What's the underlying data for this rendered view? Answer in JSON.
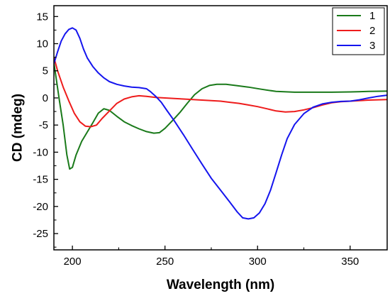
{
  "chart_data": {
    "type": "line",
    "title": "",
    "xlabel": "Wavelength (nm)",
    "ylabel": "CD (mdeg)",
    "xlim": [
      190,
      370
    ],
    "ylim": [
      -28,
      17
    ],
    "x_ticks": [
      200,
      250,
      300,
      350
    ],
    "y_ticks": [
      15,
      10,
      5,
      0,
      -5,
      -10,
      -15,
      -20,
      -25
    ],
    "grid": false,
    "legend_position": "top-right",
    "series": [
      {
        "name": "1",
        "color": "#1a7a1a",
        "points": [
          [
            190,
            6.5
          ],
          [
            191.5,
            3
          ],
          [
            193,
            -0.5
          ],
          [
            195,
            -5
          ],
          [
            197,
            -10.5
          ],
          [
            198.5,
            -13.1
          ],
          [
            200,
            -12.8
          ],
          [
            202,
            -10.5
          ],
          [
            205,
            -8
          ],
          [
            208,
            -6.3
          ],
          [
            211,
            -4.6
          ],
          [
            214,
            -2.8
          ],
          [
            217,
            -2.0
          ],
          [
            220,
            -2.3
          ],
          [
            224,
            -3.4
          ],
          [
            228,
            -4.4
          ],
          [
            232,
            -5.1
          ],
          [
            236,
            -5.7
          ],
          [
            240,
            -6.2
          ],
          [
            244,
            -6.5
          ],
          [
            247,
            -6.4
          ],
          [
            250,
            -5.6
          ],
          [
            254,
            -4.2
          ],
          [
            258,
            -2.7
          ],
          [
            262,
            -1.0
          ],
          [
            266,
            0.6
          ],
          [
            270,
            1.7
          ],
          [
            274,
            2.3
          ],
          [
            278,
            2.5
          ],
          [
            283,
            2.5
          ],
          [
            288,
            2.3
          ],
          [
            295,
            2.0
          ],
          [
            302,
            1.6
          ],
          [
            310,
            1.2
          ],
          [
            320,
            1.05
          ],
          [
            330,
            1.05
          ],
          [
            340,
            1.05
          ],
          [
            350,
            1.1
          ],
          [
            360,
            1.2
          ],
          [
            370,
            1.25
          ]
        ]
      },
      {
        "name": "2",
        "color": "#ee1c1c",
        "points": [
          [
            190,
            7.5
          ],
          [
            192,
            5
          ],
          [
            195,
            2
          ],
          [
            198,
            -0.5
          ],
          [
            201,
            -2.8
          ],
          [
            204,
            -4.4
          ],
          [
            207,
            -5.2
          ],
          [
            210,
            -5.3
          ],
          [
            213,
            -5.0
          ],
          [
            216,
            -3.8
          ],
          [
            220,
            -2.4
          ],
          [
            224,
            -1.0
          ],
          [
            228,
            -0.2
          ],
          [
            232,
            0.2
          ],
          [
            236,
            0.4
          ],
          [
            240,
            0.3
          ],
          [
            245,
            0.1
          ],
          [
            250,
            0.0
          ],
          [
            255,
            -0.1
          ],
          [
            260,
            -0.2
          ],
          [
            265,
            -0.3
          ],
          [
            270,
            -0.4
          ],
          [
            275,
            -0.5
          ],
          [
            280,
            -0.6
          ],
          [
            285,
            -0.8
          ],
          [
            290,
            -1.0
          ],
          [
            295,
            -1.3
          ],
          [
            300,
            -1.6
          ],
          [
            305,
            -2.0
          ],
          [
            310,
            -2.4
          ],
          [
            315,
            -2.6
          ],
          [
            320,
            -2.5
          ],
          [
            325,
            -2.2
          ],
          [
            330,
            -1.8
          ],
          [
            335,
            -1.3
          ],
          [
            340,
            -0.9
          ],
          [
            345,
            -0.7
          ],
          [
            350,
            -0.6
          ],
          [
            355,
            -0.5
          ],
          [
            360,
            -0.4
          ],
          [
            365,
            -0.35
          ],
          [
            370,
            -0.3
          ]
        ]
      },
      {
        "name": "3",
        "color": "#1515ee",
        "points": [
          [
            190,
            6.3
          ],
          [
            192,
            8.5
          ],
          [
            194,
            10.5
          ],
          [
            196,
            11.8
          ],
          [
            198,
            12.6
          ],
          [
            200,
            12.9
          ],
          [
            202,
            12.5
          ],
          [
            204,
            11
          ],
          [
            206,
            9
          ],
          [
            208,
            7.4
          ],
          [
            211,
            5.8
          ],
          [
            214,
            4.6
          ],
          [
            217,
            3.7
          ],
          [
            220,
            3.0
          ],
          [
            224,
            2.5
          ],
          [
            228,
            2.2
          ],
          [
            232,
            2.0
          ],
          [
            236,
            1.9
          ],
          [
            240,
            1.7
          ],
          [
            242,
            1.2
          ],
          [
            245,
            0.3
          ],
          [
            248,
            -0.8
          ],
          [
            251,
            -2.3
          ],
          [
            255,
            -4.2
          ],
          [
            260,
            -6.8
          ],
          [
            265,
            -9.5
          ],
          [
            270,
            -12.2
          ],
          [
            275,
            -14.8
          ],
          [
            280,
            -17.0
          ],
          [
            285,
            -19.2
          ],
          [
            289,
            -21.0
          ],
          [
            292,
            -22.1
          ],
          [
            295,
            -22.3
          ],
          [
            298,
            -22.1
          ],
          [
            301,
            -21.2
          ],
          [
            304,
            -19.5
          ],
          [
            307,
            -17.0
          ],
          [
            310,
            -13.8
          ],
          [
            313,
            -10.5
          ],
          [
            316,
            -7.5
          ],
          [
            320,
            -4.9
          ],
          [
            325,
            -2.9
          ],
          [
            330,
            -1.7
          ],
          [
            335,
            -1.1
          ],
          [
            340,
            -0.8
          ],
          [
            345,
            -0.65
          ],
          [
            350,
            -0.6
          ],
          [
            355,
            -0.35
          ],
          [
            360,
            0.0
          ],
          [
            365,
            0.3
          ],
          [
            370,
            0.5
          ]
        ]
      }
    ]
  }
}
